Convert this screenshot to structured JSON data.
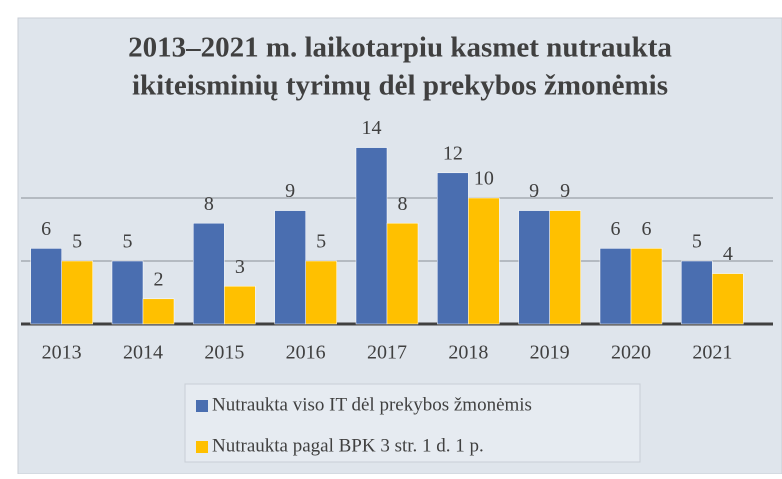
{
  "chart_data": {
    "type": "bar",
    "title": [
      "2013–2021 m. laikotarpiu kasmet nutraukta",
      "ikiteisminių tyrimų dėl prekybos žmonėmis"
    ],
    "categories": [
      "2013",
      "2014",
      "2015",
      "2016",
      "2017",
      "2018",
      "2019",
      "2020",
      "2021"
    ],
    "series": [
      {
        "name": "Nutraukta viso IT dėl prekybos žmonėmis",
        "color": "#4a6eb0",
        "values": [
          6,
          5,
          8,
          9,
          14,
          12,
          9,
          6,
          5
        ]
      },
      {
        "name": "Nutraukta pagal BPK 3 str. 1 d. 1 p.",
        "color": "#ffc000",
        "values": [
          5,
          2,
          3,
          5,
          8,
          10,
          9,
          6,
          4
        ]
      }
    ],
    "ylim": [
      0,
      15
    ],
    "yticks": [
      0,
      5,
      10
    ],
    "grid": true,
    "legend": "bottom"
  }
}
